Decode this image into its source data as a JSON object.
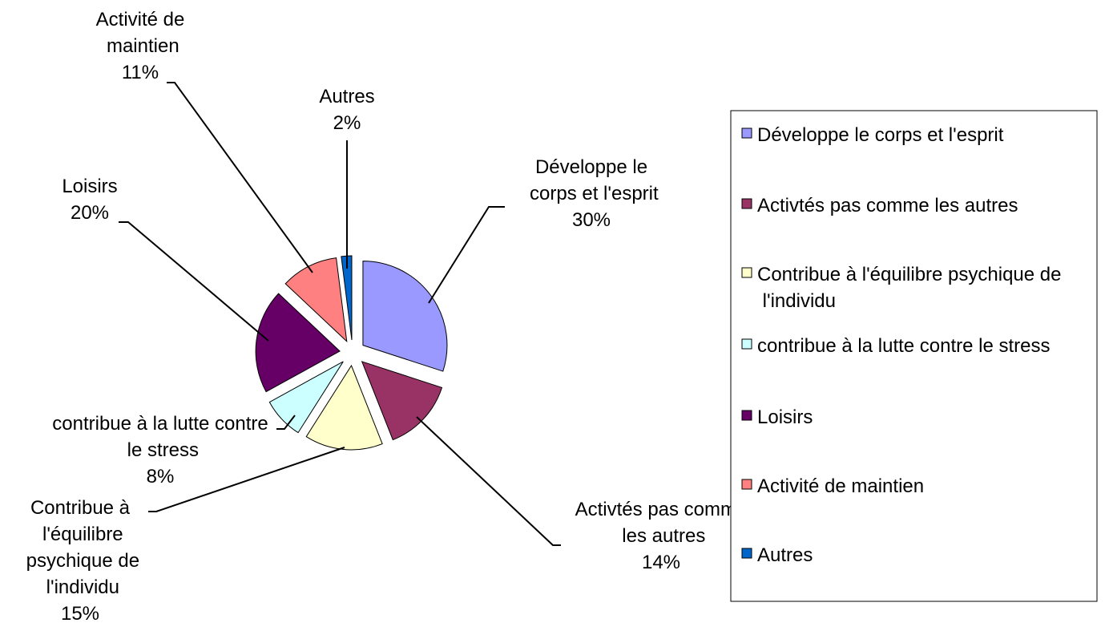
{
  "chart_data": {
    "type": "pie",
    "categories": [
      "Développe le corps et l'esprit",
      "Activtés pas comme les autres",
      "Contribue à l'équilibre psychique de l'individu",
      "contribue à la lutte contre le stress",
      "Loisirs",
      "Activité de maintien",
      "Autres"
    ],
    "values": [
      30,
      14,
      15,
      8,
      20,
      11,
      2
    ],
    "value_labels": [
      "30%",
      "14%",
      "15%",
      "8%",
      "20%",
      "11%",
      "2%"
    ],
    "colors": [
      "#9999ff",
      "#993366",
      "#ffffcc",
      "#ccffff",
      "#660066",
      "#ff8080",
      "#0066cc"
    ],
    "legend": "right"
  }
}
